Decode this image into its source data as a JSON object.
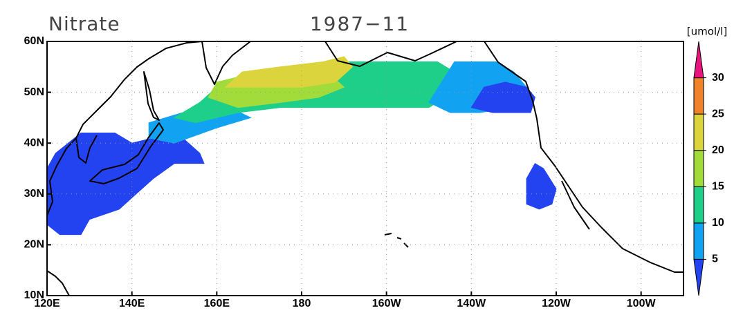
{
  "chart_data": {
    "type": "map",
    "title": "Nitrate",
    "subtitle": "1987−11",
    "unit": "[umol/l]",
    "xlim": [
      120,
      270
    ],
    "ylim": [
      10,
      60
    ],
    "xticks": [
      {
        "value": 120,
        "label": "120E"
      },
      {
        "value": 140,
        "label": "140E"
      },
      {
        "value": 160,
        "label": "160E"
      },
      180,
      {
        "value": 200,
        "label": "160W"
      },
      {
        "value": 220,
        "label": "140W"
      },
      {
        "value": 240,
        "label": "120W"
      },
      {
        "value": 260,
        "label": "100W"
      }
    ],
    "yticks": [
      {
        "value": 10,
        "label": "10N"
      },
      {
        "value": 20,
        "label": "20N"
      },
      {
        "value": 30,
        "label": "30N"
      },
      {
        "value": 40,
        "label": "40N"
      },
      {
        "value": 50,
        "label": "50N"
      },
      {
        "value": 60,
        "label": "60N"
      }
    ],
    "grid": true,
    "colorbar": {
      "levels": [
        5,
        10,
        15,
        20,
        25,
        30
      ],
      "colors": [
        "#2443f0",
        "#12a2f2",
        "#1ecf8a",
        "#a2dc3a",
        "#dcd43c",
        "#f0822a",
        "#e8157e"
      ]
    },
    "fields": [
      {
        "color": "#2443f0",
        "polygon": [
          [
            120,
            35
          ],
          [
            122,
            38
          ],
          [
            128,
            42
          ],
          [
            136,
            42
          ],
          [
            140,
            40
          ],
          [
            145,
            41
          ],
          [
            152,
            41
          ],
          [
            156,
            38
          ],
          [
            157,
            36
          ],
          [
            150,
            36
          ],
          [
            145,
            33
          ],
          [
            141,
            30
          ],
          [
            137,
            27
          ],
          [
            130,
            25
          ],
          [
            128,
            22
          ],
          [
            123,
            22
          ],
          [
            120,
            24
          ]
        ]
      },
      {
        "color": "#2443f0",
        "polygon": [
          [
            233,
            28
          ],
          [
            233,
            33
          ],
          [
            235,
            36
          ],
          [
            237,
            35
          ],
          [
            240,
            31
          ],
          [
            239,
            28
          ],
          [
            236,
            27
          ]
        ]
      },
      {
        "color": "#12a2f2",
        "polygon": [
          [
            144,
            44
          ],
          [
            152,
            46
          ],
          [
            163,
            47
          ],
          [
            168,
            45
          ],
          [
            160,
            43
          ],
          [
            150,
            40
          ],
          [
            144,
            41
          ]
        ]
      },
      {
        "color": "#1ecf8a",
        "polygon": [
          [
            150,
            45
          ],
          [
            156,
            48
          ],
          [
            160,
            51
          ],
          [
            166,
            51
          ],
          [
            176,
            53
          ],
          [
            183,
            55
          ],
          [
            190,
            56
          ],
          [
            200,
            56
          ],
          [
            212,
            56
          ],
          [
            216,
            54
          ],
          [
            214,
            49
          ],
          [
            210,
            47
          ],
          [
            205,
            47
          ],
          [
            195,
            47
          ],
          [
            185,
            47
          ],
          [
            175,
            47
          ],
          [
            165,
            46
          ],
          [
            155,
            44
          ]
        ]
      },
      {
        "color": "#12a2f2",
        "polygon": [
          [
            210,
            48
          ],
          [
            213,
            52
          ],
          [
            216,
            56
          ],
          [
            226,
            56
          ],
          [
            230,
            54
          ],
          [
            233,
            51
          ],
          [
            230,
            47
          ],
          [
            222,
            46
          ],
          [
            215,
            46
          ]
        ]
      },
      {
        "color": "#2443f0",
        "polygon": [
          [
            220,
            47
          ],
          [
            223,
            51
          ],
          [
            228,
            52
          ],
          [
            233,
            51
          ],
          [
            235,
            49
          ],
          [
            234,
            46
          ],
          [
            225,
            46
          ]
        ]
      },
      {
        "color": "#a2dc3a",
        "polygon": [
          [
            158,
            49
          ],
          [
            160,
            52
          ],
          [
            170,
            54
          ],
          [
            180,
            54
          ],
          [
            186,
            54
          ],
          [
            190,
            51
          ],
          [
            184,
            49
          ],
          [
            175,
            48
          ],
          [
            165,
            47
          ]
        ]
      },
      {
        "color": "#dcd43c",
        "polygon": [
          [
            162,
            51
          ],
          [
            166,
            54
          ],
          [
            175,
            55
          ],
          [
            185,
            56
          ],
          [
            190,
            57
          ],
          [
            192,
            55
          ],
          [
            188,
            52
          ],
          [
            180,
            51
          ],
          [
            170,
            51
          ]
        ]
      }
    ]
  }
}
